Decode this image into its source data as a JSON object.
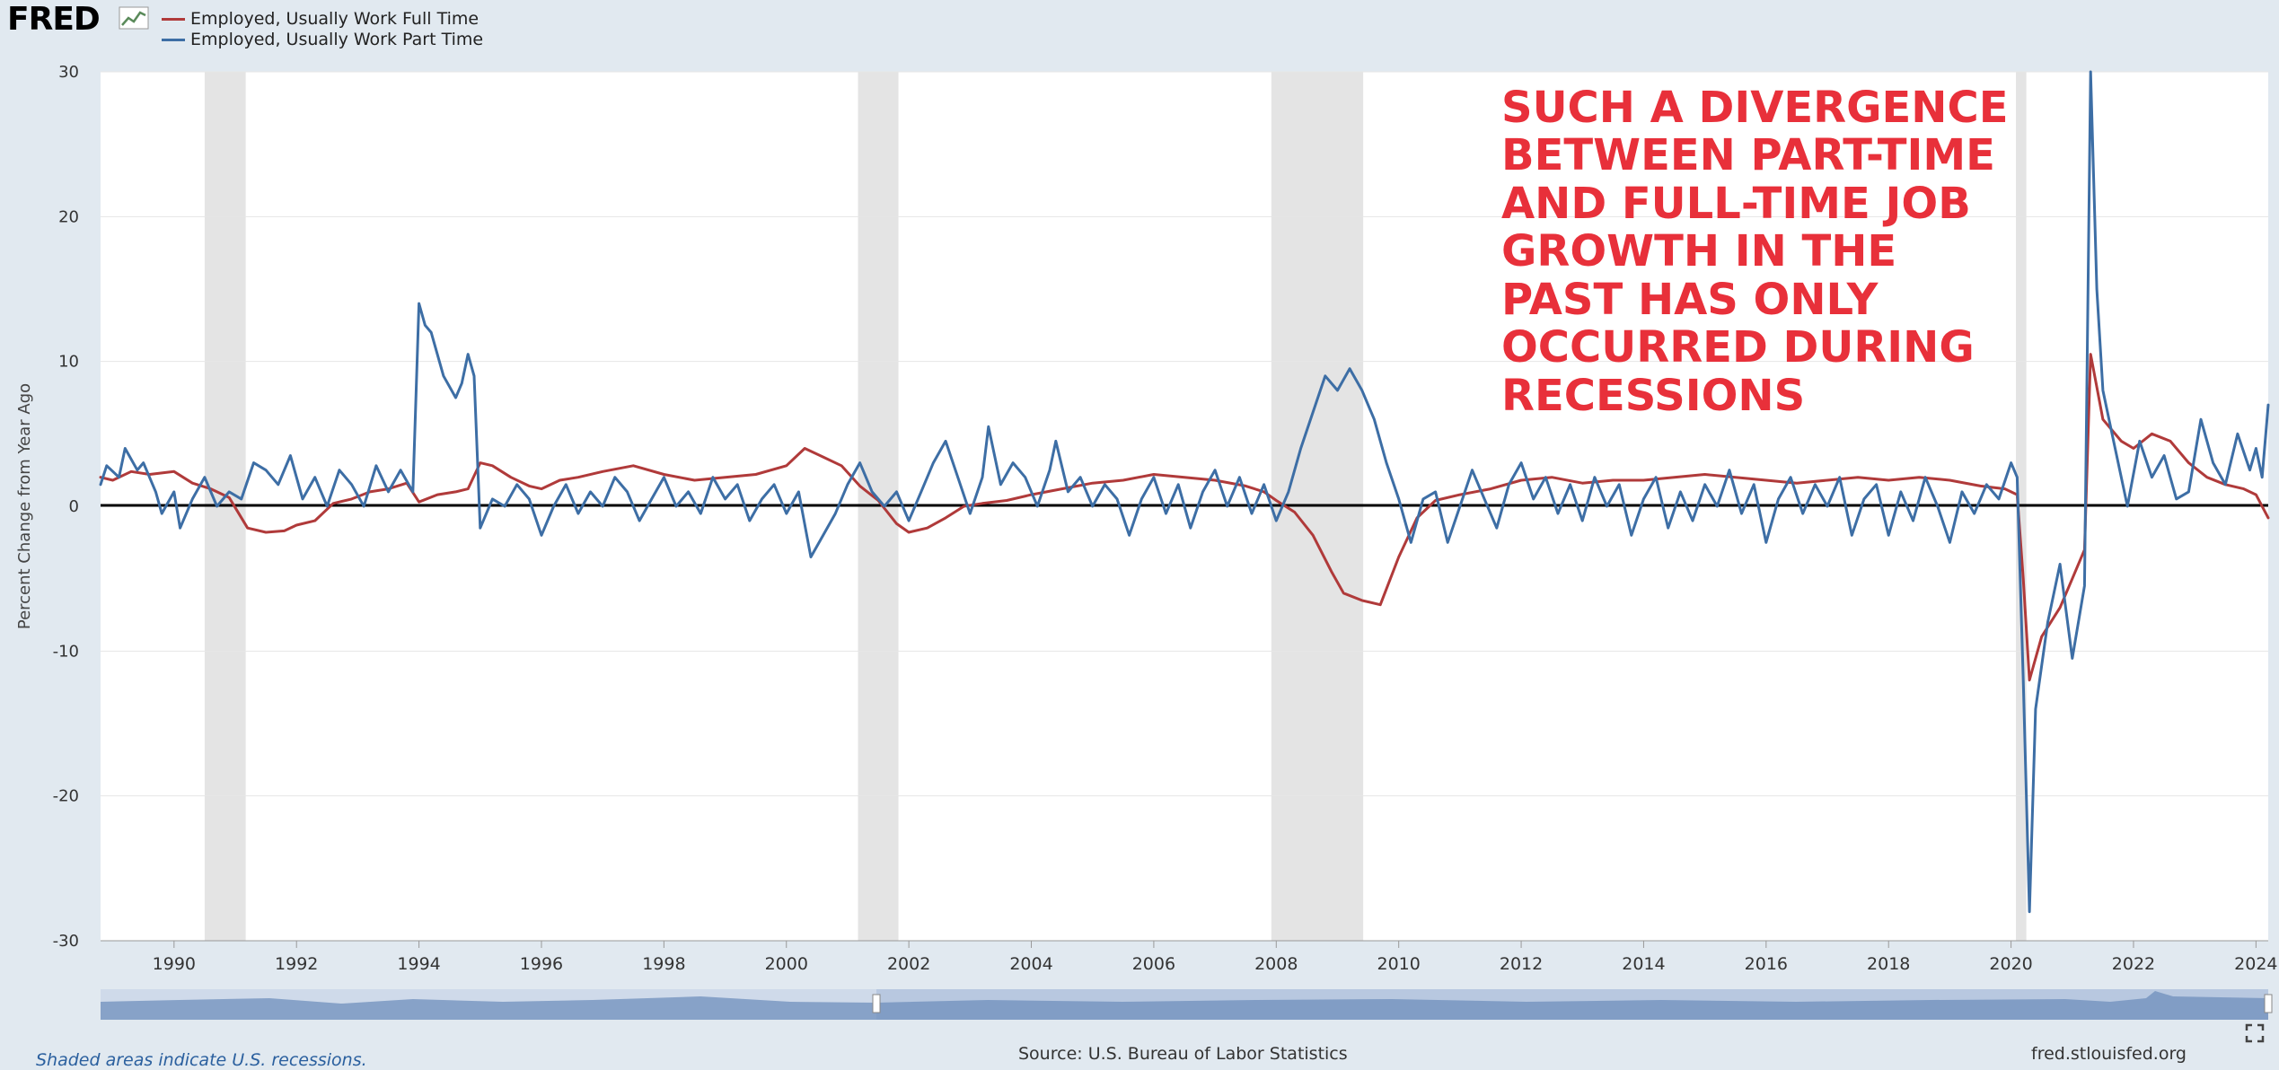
{
  "header": {
    "logo_text": "FRED",
    "legend": [
      {
        "label": "Employed, Usually Work Full Time",
        "color": "#b03a3a"
      },
      {
        "label": "Employed, Usually Work Part Time",
        "color": "#3d6ea5"
      }
    ]
  },
  "annotation": {
    "lines": [
      "SUCH A DIVERGENCE",
      "BETWEEN PART-TIME",
      "AND FULL-TIME JOB",
      "GROWTH IN THE",
      "PAST HAS ONLY",
      "OCCURRED DURING",
      "RECESSIONS"
    ],
    "color": "#e8303a"
  },
  "footer": {
    "recession_note": "Shaded areas indicate U.S. recessions.",
    "source": "Source: U.S. Bureau of Labor Statistics",
    "site": "fred.stlouisfed.org"
  },
  "chart_data": {
    "type": "line",
    "title": "",
    "xlabel": "",
    "ylabel": "Percent Change from Year Ago",
    "xlim": [
      1988.8,
      2024.2
    ],
    "ylim": [
      -30,
      30
    ],
    "y_ticks": [
      30,
      20,
      10,
      0,
      -10,
      -20,
      -30
    ],
    "x_ticks": [
      1990,
      1992,
      1994,
      1996,
      1998,
      2000,
      2002,
      2004,
      2006,
      2008,
      2010,
      2012,
      2014,
      2016,
      2018,
      2020,
      2022,
      2024
    ],
    "grid": "horizontal",
    "zero_line": true,
    "recessions": [
      [
        1990.5,
        1991.17
      ],
      [
        2001.17,
        2001.83
      ],
      [
        2007.92,
        2009.42
      ],
      [
        2020.08,
        2020.25
      ]
    ],
    "series": [
      {
        "name": "Employed, Usually Work Full Time",
        "color": "#b03a3a",
        "points": [
          [
            1988.8,
            2.0
          ],
          [
            1989.0,
            1.8
          ],
          [
            1989.3,
            2.4
          ],
          [
            1989.6,
            2.2
          ],
          [
            1990.0,
            2.4
          ],
          [
            1990.3,
            1.6
          ],
          [
            1990.6,
            1.2
          ],
          [
            1990.9,
            0.6
          ],
          [
            1991.2,
            -1.5
          ],
          [
            1991.5,
            -1.8
          ],
          [
            1991.8,
            -1.7
          ],
          [
            1992.0,
            -1.3
          ],
          [
            1992.3,
            -1.0
          ],
          [
            1992.6,
            0.2
          ],
          [
            1992.9,
            0.5
          ],
          [
            1993.2,
            1.0
          ],
          [
            1993.5,
            1.2
          ],
          [
            1993.8,
            1.6
          ],
          [
            1994.0,
            0.3
          ],
          [
            1994.3,
            0.8
          ],
          [
            1994.6,
            1.0
          ],
          [
            1994.8,
            1.2
          ],
          [
            1995.0,
            3.0
          ],
          [
            1995.2,
            2.8
          ],
          [
            1995.5,
            2.0
          ],
          [
            1995.8,
            1.4
          ],
          [
            1996.0,
            1.2
          ],
          [
            1996.3,
            1.8
          ],
          [
            1996.6,
            2.0
          ],
          [
            1997.0,
            2.4
          ],
          [
            1997.5,
            2.8
          ],
          [
            1998.0,
            2.2
          ],
          [
            1998.5,
            1.8
          ],
          [
            1999.0,
            2.0
          ],
          [
            1999.5,
            2.2
          ],
          [
            2000.0,
            2.8
          ],
          [
            2000.3,
            4.0
          ],
          [
            2000.6,
            3.4
          ],
          [
            2000.9,
            2.8
          ],
          [
            2001.2,
            1.4
          ],
          [
            2001.5,
            0.4
          ],
          [
            2001.8,
            -1.2
          ],
          [
            2002.0,
            -1.8
          ],
          [
            2002.3,
            -1.5
          ],
          [
            2002.6,
            -0.8
          ],
          [
            2002.9,
            0.0
          ],
          [
            2003.2,
            0.2
          ],
          [
            2003.6,
            0.4
          ],
          [
            2004.0,
            0.8
          ],
          [
            2004.5,
            1.2
          ],
          [
            2005.0,
            1.6
          ],
          [
            2005.5,
            1.8
          ],
          [
            2006.0,
            2.2
          ],
          [
            2006.5,
            2.0
          ],
          [
            2007.0,
            1.8
          ],
          [
            2007.5,
            1.4
          ],
          [
            2007.8,
            1.0
          ],
          [
            2008.0,
            0.4
          ],
          [
            2008.3,
            -0.4
          ],
          [
            2008.6,
            -2.0
          ],
          [
            2008.9,
            -4.5
          ],
          [
            2009.1,
            -6.0
          ],
          [
            2009.4,
            -6.5
          ],
          [
            2009.7,
            -6.8
          ],
          [
            2010.0,
            -3.5
          ],
          [
            2010.3,
            -0.8
          ],
          [
            2010.6,
            0.4
          ],
          [
            2011.0,
            0.8
          ],
          [
            2011.5,
            1.2
          ],
          [
            2012.0,
            1.8
          ],
          [
            2012.5,
            2.0
          ],
          [
            2013.0,
            1.6
          ],
          [
            2013.5,
            1.8
          ],
          [
            2014.0,
            1.8
          ],
          [
            2014.5,
            2.0
          ],
          [
            2015.0,
            2.2
          ],
          [
            2015.5,
            2.0
          ],
          [
            2016.0,
            1.8
          ],
          [
            2016.5,
            1.6
          ],
          [
            2017.0,
            1.8
          ],
          [
            2017.5,
            2.0
          ],
          [
            2018.0,
            1.8
          ],
          [
            2018.5,
            2.0
          ],
          [
            2019.0,
            1.8
          ],
          [
            2019.5,
            1.4
          ],
          [
            2019.9,
            1.2
          ],
          [
            2020.1,
            0.8
          ],
          [
            2020.2,
            -5.0
          ],
          [
            2020.3,
            -12.0
          ],
          [
            2020.5,
            -9.0
          ],
          [
            2020.8,
            -7.0
          ],
          [
            2021.0,
            -5.0
          ],
          [
            2021.2,
            -3.0
          ],
          [
            2021.3,
            10.5
          ],
          [
            2021.5,
            6.0
          ],
          [
            2021.8,
            4.5
          ],
          [
            2022.0,
            4.0
          ],
          [
            2022.3,
            5.0
          ],
          [
            2022.6,
            4.5
          ],
          [
            2022.9,
            3.0
          ],
          [
            2023.2,
            2.0
          ],
          [
            2023.5,
            1.5
          ],
          [
            2023.8,
            1.2
          ],
          [
            2024.0,
            0.8
          ],
          [
            2024.2,
            -0.8
          ]
        ]
      },
      {
        "name": "Employed, Usually Work Part Time",
        "color": "#3d6ea5",
        "points": [
          [
            1988.8,
            1.5
          ],
          [
            1988.9,
            2.8
          ],
          [
            1989.1,
            2.0
          ],
          [
            1989.2,
            4.0
          ],
          [
            1989.4,
            2.5
          ],
          [
            1989.5,
            3.0
          ],
          [
            1989.7,
            1.0
          ],
          [
            1989.8,
            -0.5
          ],
          [
            1990.0,
            1.0
          ],
          [
            1990.1,
            -1.5
          ],
          [
            1990.3,
            0.5
          ],
          [
            1990.5,
            2.0
          ],
          [
            1990.7,
            0.0
          ],
          [
            1990.9,
            1.0
          ],
          [
            1991.1,
            0.5
          ],
          [
            1991.3,
            3.0
          ],
          [
            1991.5,
            2.5
          ],
          [
            1991.7,
            1.5
          ],
          [
            1991.9,
            3.5
          ],
          [
            1992.1,
            0.5
          ],
          [
            1992.3,
            2.0
          ],
          [
            1992.5,
            0.0
          ],
          [
            1992.7,
            2.5
          ],
          [
            1992.9,
            1.5
          ],
          [
            1993.1,
            0.0
          ],
          [
            1993.3,
            2.8
          ],
          [
            1993.5,
            1.0
          ],
          [
            1993.7,
            2.5
          ],
          [
            1993.9,
            1.0
          ],
          [
            1994.0,
            14.0
          ],
          [
            1994.1,
            12.5
          ],
          [
            1994.2,
            12.0
          ],
          [
            1994.4,
            9.0
          ],
          [
            1994.6,
            7.5
          ],
          [
            1994.7,
            8.5
          ],
          [
            1994.8,
            10.5
          ],
          [
            1994.9,
            9.0
          ],
          [
            1995.0,
            -1.5
          ],
          [
            1995.2,
            0.5
          ],
          [
            1995.4,
            0.0
          ],
          [
            1995.6,
            1.5
          ],
          [
            1995.8,
            0.5
          ],
          [
            1996.0,
            -2.0
          ],
          [
            1996.2,
            0.0
          ],
          [
            1996.4,
            1.5
          ],
          [
            1996.6,
            -0.5
          ],
          [
            1996.8,
            1.0
          ],
          [
            1997.0,
            0.0
          ],
          [
            1997.2,
            2.0
          ],
          [
            1997.4,
            1.0
          ],
          [
            1997.6,
            -1.0
          ],
          [
            1997.8,
            0.5
          ],
          [
            1998.0,
            2.0
          ],
          [
            1998.2,
            0.0
          ],
          [
            1998.4,
            1.0
          ],
          [
            1998.6,
            -0.5
          ],
          [
            1998.8,
            2.0
          ],
          [
            1999.0,
            0.5
          ],
          [
            1999.2,
            1.5
          ],
          [
            1999.4,
            -1.0
          ],
          [
            1999.6,
            0.5
          ],
          [
            1999.8,
            1.5
          ],
          [
            2000.0,
            -0.5
          ],
          [
            2000.2,
            1.0
          ],
          [
            2000.4,
            -3.5
          ],
          [
            2000.6,
            -2.0
          ],
          [
            2000.8,
            -0.5
          ],
          [
            2001.0,
            1.5
          ],
          [
            2001.2,
            3.0
          ],
          [
            2001.4,
            1.0
          ],
          [
            2001.6,
            0.0
          ],
          [
            2001.8,
            1.0
          ],
          [
            2002.0,
            -1.0
          ],
          [
            2002.2,
            1.0
          ],
          [
            2002.4,
            3.0
          ],
          [
            2002.6,
            4.5
          ],
          [
            2002.8,
            2.0
          ],
          [
            2003.0,
            -0.5
          ],
          [
            2003.2,
            2.0
          ],
          [
            2003.3,
            5.5
          ],
          [
            2003.5,
            1.5
          ],
          [
            2003.7,
            3.0
          ],
          [
            2003.9,
            2.0
          ],
          [
            2004.1,
            0.0
          ],
          [
            2004.3,
            2.5
          ],
          [
            2004.4,
            4.5
          ],
          [
            2004.6,
            1.0
          ],
          [
            2004.8,
            2.0
          ],
          [
            2005.0,
            0.0
          ],
          [
            2005.2,
            1.5
          ],
          [
            2005.4,
            0.5
          ],
          [
            2005.6,
            -2.0
          ],
          [
            2005.8,
            0.5
          ],
          [
            2006.0,
            2.0
          ],
          [
            2006.2,
            -0.5
          ],
          [
            2006.4,
            1.5
          ],
          [
            2006.6,
            -1.5
          ],
          [
            2006.8,
            1.0
          ],
          [
            2007.0,
            2.5
          ],
          [
            2007.2,
            0.0
          ],
          [
            2007.4,
            2.0
          ],
          [
            2007.6,
            -0.5
          ],
          [
            2007.8,
            1.5
          ],
          [
            2008.0,
            -1.0
          ],
          [
            2008.2,
            1.0
          ],
          [
            2008.4,
            4.0
          ],
          [
            2008.6,
            6.5
          ],
          [
            2008.8,
            9.0
          ],
          [
            2009.0,
            8.0
          ],
          [
            2009.2,
            9.5
          ],
          [
            2009.4,
            8.0
          ],
          [
            2009.6,
            6.0
          ],
          [
            2009.8,
            3.0
          ],
          [
            2010.0,
            0.5
          ],
          [
            2010.2,
            -2.5
          ],
          [
            2010.4,
            0.5
          ],
          [
            2010.6,
            1.0
          ],
          [
            2010.8,
            -2.5
          ],
          [
            2011.0,
            0.0
          ],
          [
            2011.2,
            2.5
          ],
          [
            2011.4,
            0.5
          ],
          [
            2011.6,
            -1.5
          ],
          [
            2011.8,
            1.5
          ],
          [
            2012.0,
            3.0
          ],
          [
            2012.2,
            0.5
          ],
          [
            2012.4,
            2.0
          ],
          [
            2012.6,
            -0.5
          ],
          [
            2012.8,
            1.5
          ],
          [
            2013.0,
            -1.0
          ],
          [
            2013.2,
            2.0
          ],
          [
            2013.4,
            0.0
          ],
          [
            2013.6,
            1.5
          ],
          [
            2013.8,
            -2.0
          ],
          [
            2014.0,
            0.5
          ],
          [
            2014.2,
            2.0
          ],
          [
            2014.4,
            -1.5
          ],
          [
            2014.6,
            1.0
          ],
          [
            2014.8,
            -1.0
          ],
          [
            2015.0,
            1.5
          ],
          [
            2015.2,
            0.0
          ],
          [
            2015.4,
            2.5
          ],
          [
            2015.6,
            -0.5
          ],
          [
            2015.8,
            1.5
          ],
          [
            2016.0,
            -2.5
          ],
          [
            2016.2,
            0.5
          ],
          [
            2016.4,
            2.0
          ],
          [
            2016.6,
            -0.5
          ],
          [
            2016.8,
            1.5
          ],
          [
            2017.0,
            0.0
          ],
          [
            2017.2,
            2.0
          ],
          [
            2017.4,
            -2.0
          ],
          [
            2017.6,
            0.5
          ],
          [
            2017.8,
            1.5
          ],
          [
            2018.0,
            -2.0
          ],
          [
            2018.2,
            1.0
          ],
          [
            2018.4,
            -1.0
          ],
          [
            2018.6,
            2.0
          ],
          [
            2018.8,
            0.0
          ],
          [
            2019.0,
            -2.5
          ],
          [
            2019.2,
            1.0
          ],
          [
            2019.4,
            -0.5
          ],
          [
            2019.6,
            1.5
          ],
          [
            2019.8,
            0.5
          ],
          [
            2020.0,
            3.0
          ],
          [
            2020.1,
            2.0
          ],
          [
            2020.2,
            -12.0
          ],
          [
            2020.3,
            -28.0
          ],
          [
            2020.4,
            -14.0
          ],
          [
            2020.6,
            -8.0
          ],
          [
            2020.8,
            -4.0
          ],
          [
            2021.0,
            -10.5
          ],
          [
            2021.2,
            -5.5
          ],
          [
            2021.3,
            30.0
          ],
          [
            2021.4,
            15.0
          ],
          [
            2021.5,
            8.0
          ],
          [
            2021.7,
            4.0
          ],
          [
            2021.9,
            0.0
          ],
          [
            2022.1,
            4.5
          ],
          [
            2022.3,
            2.0
          ],
          [
            2022.5,
            3.5
          ],
          [
            2022.7,
            0.5
          ],
          [
            2022.9,
            1.0
          ],
          [
            2023.1,
            6.0
          ],
          [
            2023.3,
            3.0
          ],
          [
            2023.5,
            1.5
          ],
          [
            2023.7,
            5.0
          ],
          [
            2023.9,
            2.5
          ],
          [
            2024.0,
            4.0
          ],
          [
            2024.1,
            2.0
          ],
          [
            2024.2,
            7.0
          ]
        ]
      }
    ]
  }
}
